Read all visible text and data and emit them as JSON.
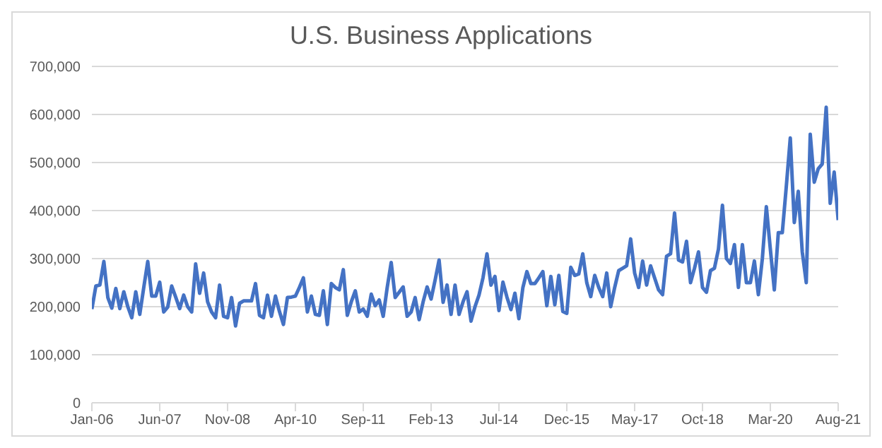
{
  "chart_data": {
    "type": "line",
    "title": "U.S. Business Applications",
    "categories": [
      "Jan-06",
      null,
      null,
      null,
      null,
      null,
      null,
      null,
      null,
      null,
      null,
      null,
      null,
      null,
      null,
      null,
      null,
      "Jun-07",
      null,
      null,
      null,
      null,
      null,
      null,
      null,
      null,
      null,
      null,
      null,
      null,
      null,
      null,
      null,
      null,
      "Nov-08",
      null,
      null,
      null,
      null,
      null,
      null,
      null,
      null,
      null,
      null,
      null,
      null,
      null,
      null,
      null,
      null,
      "Apr-10",
      null,
      null,
      null,
      null,
      null,
      null,
      null,
      null,
      null,
      null,
      null,
      null,
      null,
      null,
      null,
      null,
      "Sep-11",
      null,
      null,
      null,
      null,
      null,
      null,
      null,
      null,
      null,
      null,
      null,
      null,
      null,
      null,
      null,
      null,
      "Feb-13",
      null,
      null,
      null,
      null,
      null,
      null,
      null,
      null,
      null,
      null,
      null,
      null,
      null,
      null,
      null,
      null,
      "Jul-14",
      null,
      null,
      null,
      null,
      null,
      null,
      null,
      null,
      null,
      null,
      null,
      null,
      null,
      null,
      null,
      null,
      "Dec-15",
      null,
      null,
      null,
      null,
      null,
      null,
      null,
      null,
      null,
      null,
      null,
      null,
      null,
      null,
      null,
      null,
      "May-17",
      null,
      null,
      null,
      null,
      null,
      null,
      null,
      null,
      null,
      null,
      null,
      null,
      null,
      null,
      null,
      null,
      "Oct-18",
      null,
      null,
      null,
      null,
      null,
      null,
      null,
      null,
      null,
      null,
      null,
      null,
      null,
      null,
      null,
      null,
      "Mar-20",
      null,
      null,
      null,
      null,
      null,
      null,
      null,
      null,
      null,
      null,
      null,
      null,
      null,
      null,
      null,
      null,
      "Aug-21"
    ],
    "series": [
      {
        "color": "#4472c4",
        "values": [
          195000,
          243000,
          245000,
          294000,
          219000,
          197000,
          238000,
          196000,
          231000,
          200000,
          177000,
          231000,
          184000,
          240000,
          294000,
          222000,
          222000,
          251000,
          189000,
          199000,
          243000,
          220000,
          196000,
          224000,
          200000,
          189000,
          289000,
          228000,
          270000,
          210000,
          189000,
          177000,
          245000,
          180000,
          177000,
          219000,
          160000,
          207000,
          212000,
          212000,
          212000,
          248000,
          182000,
          177000,
          224000,
          180000,
          222000,
          190000,
          163000,
          219000,
          220000,
          222000,
          240000,
          260000,
          189000,
          222000,
          184000,
          182000,
          233000,
          163000,
          248000,
          240000,
          235000,
          277000,
          182000,
          210000,
          233000,
          189000,
          195000,
          180000,
          226000,
          202000,
          214000,
          180000,
          240000,
          292000,
          219000,
          230000,
          241000,
          180000,
          189000,
          219000,
          173000,
          210000,
          241000,
          216000,
          255000,
          297000,
          209000,
          245000,
          184000,
          245000,
          184000,
          210000,
          231000,
          170000,
          200000,
          224000,
          260000,
          310000,
          245000,
          263000,
          192000,
          251000,
          220000,
          194000,
          228000,
          175000,
          240000,
          273000,
          248000,
          248000,
          260000,
          273000,
          202000,
          263000,
          204000,
          265000,
          190000,
          186000,
          282000,
          265000,
          268000,
          310000,
          250000,
          221000,
          265000,
          240000,
          221000,
          270000,
          200000,
          240000,
          275000,
          280000,
          285000,
          341000,
          270000,
          240000,
          295000,
          245000,
          285000,
          260000,
          235000,
          225000,
          305000,
          310000,
          395000,
          297000,
          293000,
          336000,
          250000,
          280000,
          314000,
          240000,
          230000,
          275000,
          280000,
          320000,
          411000,
          300000,
          290000,
          329000,
          240000,
          329000,
          250000,
          250000,
          295000,
          225000,
          300000,
          408000,
          320000,
          235000,
          354000,
          354000,
          450000,
          551000,
          375000,
          440000,
          314000,
          250000,
          559000,
          459000,
          487000,
          497000,
          615000,
          415000,
          480000,
          380000
        ]
      }
    ],
    "ylim": [
      0,
      700000
    ],
    "yticks": [
      {
        "value": 0,
        "label": "0"
      },
      {
        "value": 100000,
        "label": "100,000"
      },
      {
        "value": 200000,
        "label": "200,000"
      },
      {
        "value": 300000,
        "label": "300,000"
      },
      {
        "value": 400000,
        "label": "400,000"
      },
      {
        "value": 500000,
        "label": "500,000"
      },
      {
        "value": 600000,
        "label": "600,000"
      },
      {
        "value": 700000,
        "label": "700,000"
      }
    ],
    "grid": "y",
    "legend": false,
    "marker": "none",
    "line_style": "solid"
  }
}
